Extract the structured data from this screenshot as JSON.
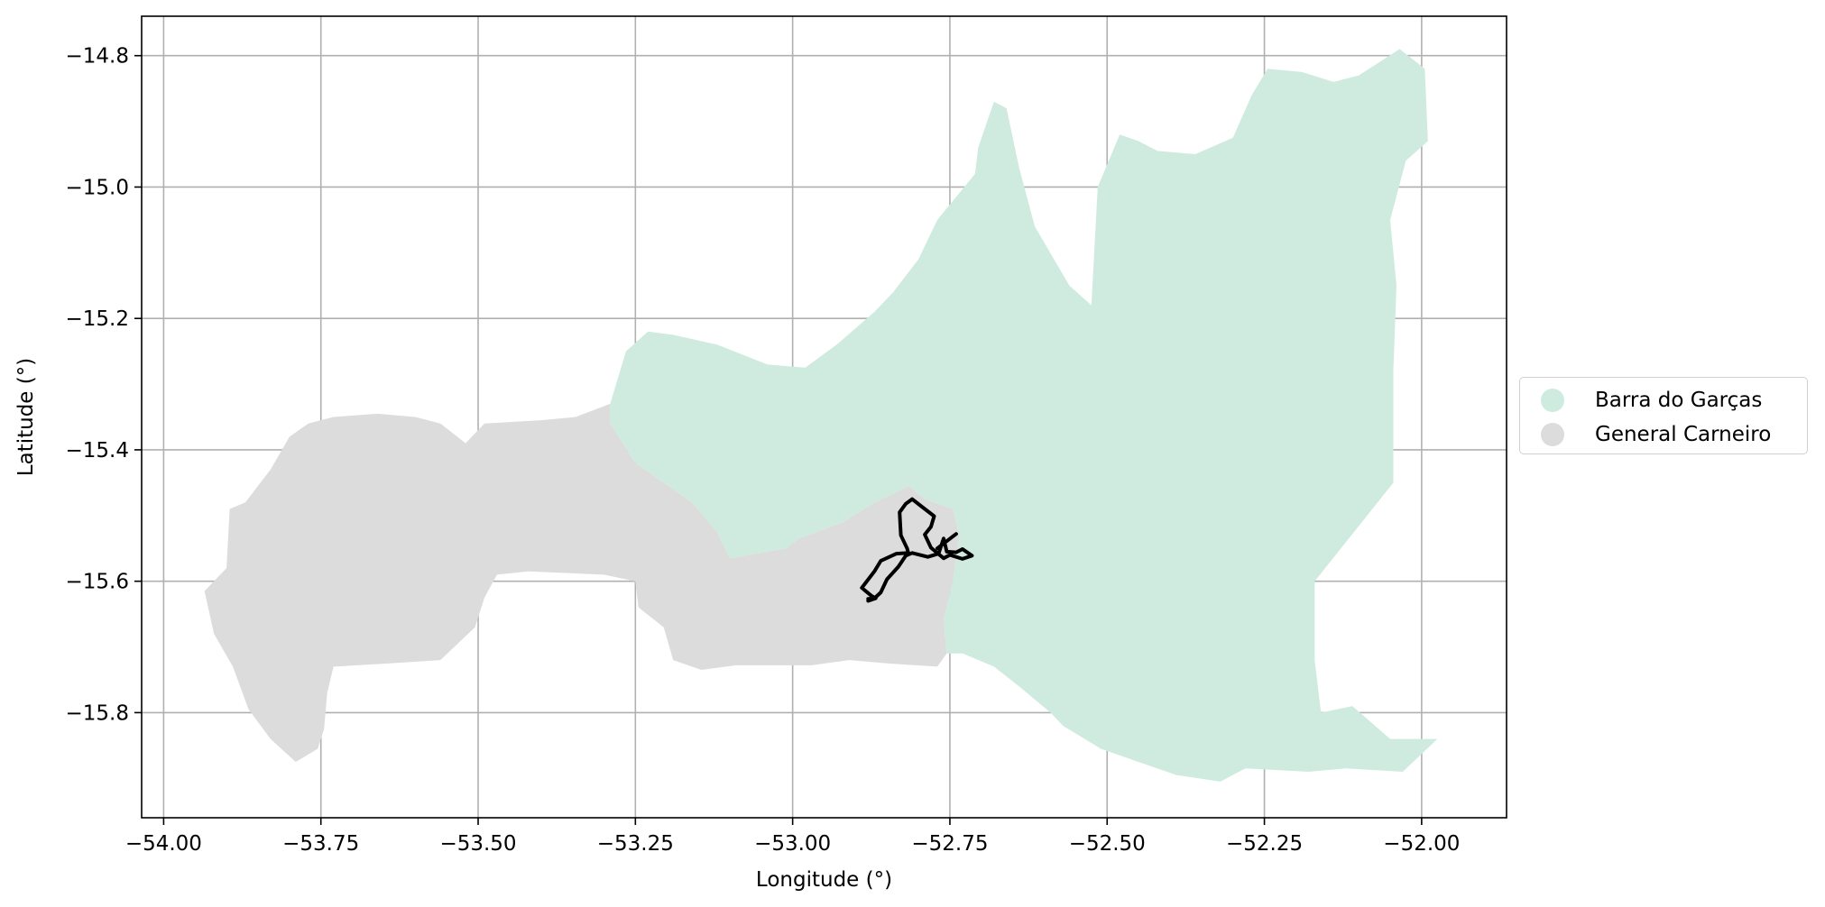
{
  "chart_data": {
    "type": "map",
    "title": "",
    "xlabel": "Longitude (°)",
    "ylabel": "Latitude (°)",
    "xlim": [
      -54.035,
      -51.865
    ],
    "ylim": [
      -15.96,
      -14.74
    ],
    "xticks": [
      -54.0,
      -53.75,
      -53.5,
      -53.25,
      -53.0,
      -52.75,
      -52.5,
      -52.25,
      -52.0
    ],
    "xtick_labels": [
      "−54.00",
      "−53.75",
      "−53.50",
      "−53.25",
      "−53.00",
      "−52.75",
      "−52.50",
      "−52.25",
      "−52.00"
    ],
    "yticks": [
      -14.8,
      -15.0,
      -15.2,
      -15.4,
      -15.6,
      -15.8
    ],
    "ytick_labels": [
      "−14.8",
      "−15.0",
      "−15.2",
      "−15.4",
      "−15.6",
      "−15.8"
    ],
    "grid": true,
    "legend_position": "center-right-outside",
    "regions": [
      {
        "name": "General Carneiro",
        "color": "#dcdcdc",
        "polygon": [
          [
            -53.79,
            -15.875
          ],
          [
            -53.755,
            -15.855
          ],
          [
            -53.745,
            -15.825
          ],
          [
            -53.74,
            -15.77
          ],
          [
            -53.73,
            -15.73
          ],
          [
            -53.64,
            -15.725
          ],
          [
            -53.56,
            -15.72
          ],
          [
            -53.505,
            -15.67
          ],
          [
            -53.49,
            -15.625
          ],
          [
            -53.47,
            -15.59
          ],
          [
            -53.42,
            -15.585
          ],
          [
            -53.3,
            -15.59
          ],
          [
            -53.25,
            -15.6
          ],
          [
            -53.245,
            -15.64
          ],
          [
            -53.205,
            -15.67
          ],
          [
            -53.19,
            -15.72
          ],
          [
            -53.145,
            -15.735
          ],
          [
            -53.09,
            -15.728
          ],
          [
            -53.03,
            -15.728
          ],
          [
            -52.97,
            -15.728
          ],
          [
            -52.91,
            -15.72
          ],
          [
            -52.85,
            -15.725
          ],
          [
            -52.77,
            -15.73
          ],
          [
            -52.755,
            -15.71
          ],
          [
            -52.76,
            -15.66
          ],
          [
            -52.745,
            -15.6
          ],
          [
            -52.735,
            -15.53
          ],
          [
            -52.745,
            -15.49
          ],
          [
            -52.79,
            -15.475
          ],
          [
            -52.815,
            -15.455
          ],
          [
            -52.87,
            -15.48
          ],
          [
            -52.92,
            -15.51
          ],
          [
            -52.99,
            -15.535
          ],
          [
            -53.01,
            -15.55
          ],
          [
            -53.1,
            -15.565
          ],
          [
            -53.12,
            -15.525
          ],
          [
            -53.16,
            -15.48
          ],
          [
            -53.25,
            -15.42
          ],
          [
            -53.29,
            -15.36
          ],
          [
            -53.29,
            -15.33
          ],
          [
            -53.345,
            -15.35
          ],
          [
            -53.4,
            -15.355
          ],
          [
            -53.49,
            -15.36
          ],
          [
            -53.52,
            -15.39
          ],
          [
            -53.56,
            -15.36
          ],
          [
            -53.6,
            -15.35
          ],
          [
            -53.66,
            -15.345
          ],
          [
            -53.73,
            -15.35
          ],
          [
            -53.77,
            -15.36
          ],
          [
            -53.8,
            -15.38
          ],
          [
            -53.83,
            -15.43
          ],
          [
            -53.87,
            -15.48
          ],
          [
            -53.895,
            -15.49
          ],
          [
            -53.9,
            -15.58
          ],
          [
            -53.935,
            -15.615
          ],
          [
            -53.92,
            -15.68
          ],
          [
            -53.89,
            -15.73
          ],
          [
            -53.865,
            -15.795
          ],
          [
            -53.83,
            -15.84
          ]
        ]
      },
      {
        "name": "Barra do Garças",
        "color": "#cfebdf",
        "polygon": [
          [
            -53.29,
            -15.33
          ],
          [
            -53.265,
            -15.25
          ],
          [
            -53.23,
            -15.22
          ],
          [
            -53.19,
            -15.225
          ],
          [
            -53.12,
            -15.24
          ],
          [
            -53.04,
            -15.27
          ],
          [
            -52.98,
            -15.275
          ],
          [
            -52.93,
            -15.24
          ],
          [
            -52.9,
            -15.215
          ],
          [
            -52.87,
            -15.19
          ],
          [
            -52.84,
            -15.16
          ],
          [
            -52.8,
            -15.11
          ],
          [
            -52.77,
            -15.05
          ],
          [
            -52.71,
            -14.98
          ],
          [
            -52.705,
            -14.94
          ],
          [
            -52.68,
            -14.87
          ],
          [
            -52.66,
            -14.88
          ],
          [
            -52.64,
            -14.97
          ],
          [
            -52.615,
            -15.06
          ],
          [
            -52.56,
            -15.15
          ],
          [
            -52.525,
            -15.18
          ],
          [
            -52.515,
            -15.0
          ],
          [
            -52.48,
            -14.92
          ],
          [
            -52.45,
            -14.93
          ],
          [
            -52.42,
            -14.945
          ],
          [
            -52.36,
            -14.95
          ],
          [
            -52.3,
            -14.925
          ],
          [
            -52.27,
            -14.86
          ],
          [
            -52.245,
            -14.82
          ],
          [
            -52.19,
            -14.825
          ],
          [
            -52.14,
            -14.84
          ],
          [
            -52.1,
            -14.83
          ],
          [
            -52.035,
            -14.79
          ],
          [
            -51.995,
            -14.82
          ],
          [
            -51.99,
            -14.93
          ],
          [
            -52.025,
            -14.96
          ],
          [
            -52.05,
            -15.05
          ],
          [
            -52.04,
            -15.15
          ],
          [
            -52.045,
            -15.28
          ],
          [
            -52.045,
            -15.45
          ],
          [
            -52.12,
            -15.54
          ],
          [
            -52.17,
            -15.6
          ],
          [
            -52.17,
            -15.72
          ],
          [
            -52.16,
            -15.8
          ],
          [
            -52.11,
            -15.79
          ],
          [
            -52.05,
            -15.84
          ],
          [
            -51.975,
            -15.84
          ],
          [
            -52.03,
            -15.89
          ],
          [
            -52.12,
            -15.885
          ],
          [
            -52.18,
            -15.89
          ],
          [
            -52.28,
            -15.885
          ],
          [
            -52.32,
            -15.905
          ],
          [
            -52.39,
            -15.895
          ],
          [
            -52.45,
            -15.875
          ],
          [
            -52.51,
            -15.855
          ],
          [
            -52.57,
            -15.82
          ],
          [
            -52.59,
            -15.8
          ],
          [
            -52.64,
            -15.76
          ],
          [
            -52.68,
            -15.73
          ],
          [
            -52.73,
            -15.71
          ],
          [
            -52.755,
            -15.71
          ],
          [
            -52.76,
            -15.66
          ],
          [
            -52.745,
            -15.6
          ],
          [
            -52.735,
            -15.53
          ],
          [
            -52.745,
            -15.49
          ],
          [
            -52.79,
            -15.475
          ],
          [
            -52.815,
            -15.455
          ],
          [
            -52.87,
            -15.48
          ],
          [
            -52.92,
            -15.51
          ],
          [
            -52.99,
            -15.535
          ],
          [
            -53.01,
            -15.55
          ],
          [
            -53.1,
            -15.565
          ],
          [
            -53.12,
            -15.525
          ],
          [
            -53.16,
            -15.48
          ],
          [
            -53.25,
            -15.42
          ],
          [
            -53.29,
            -15.36
          ]
        ]
      }
    ],
    "track": {
      "color": "#000000",
      "path": [
        [
          -52.88,
          -15.627
        ],
        [
          -52.87,
          -15.626
        ],
        [
          -52.86,
          -15.617
        ],
        [
          -52.85,
          -15.597
        ],
        [
          -52.832,
          -15.578
        ],
        [
          -52.82,
          -15.561
        ],
        [
          -52.81,
          -15.557
        ],
        [
          -52.785,
          -15.563
        ],
        [
          -52.768,
          -15.558
        ],
        [
          -52.76,
          -15.535
        ],
        [
          -52.755,
          -15.555
        ],
        [
          -52.74,
          -15.556
        ],
        [
          -52.73,
          -15.551
        ],
        [
          -52.715,
          -15.561
        ],
        [
          -52.73,
          -15.566
        ],
        [
          -52.75,
          -15.56
        ],
        [
          -52.76,
          -15.565
        ],
        [
          -52.78,
          -15.549
        ],
        [
          -52.79,
          -15.529
        ],
        [
          -52.78,
          -15.517
        ],
        [
          -52.775,
          -15.501
        ],
        [
          -52.79,
          -15.49
        ],
        [
          -52.81,
          -15.475
        ],
        [
          -52.82,
          -15.482
        ],
        [
          -52.83,
          -15.495
        ],
        [
          -52.828,
          -15.53
        ],
        [
          -52.818,
          -15.55
        ],
        [
          -52.816,
          -15.557
        ],
        [
          -52.835,
          -15.558
        ],
        [
          -52.86,
          -15.569
        ],
        [
          -52.87,
          -15.585
        ],
        [
          -52.89,
          -15.61
        ],
        [
          -52.875,
          -15.622
        ],
        [
          -52.868,
          -15.626
        ],
        [
          -52.88,
          -15.63
        ]
      ],
      "spur": [
        [
          -52.77,
          -15.55
        ],
        [
          -52.74,
          -15.528
        ]
      ]
    },
    "legend": [
      {
        "label": "Barra do Garças",
        "color": "#cfebdf"
      },
      {
        "label": "General Carneiro",
        "color": "#dcdcdc"
      }
    ]
  }
}
